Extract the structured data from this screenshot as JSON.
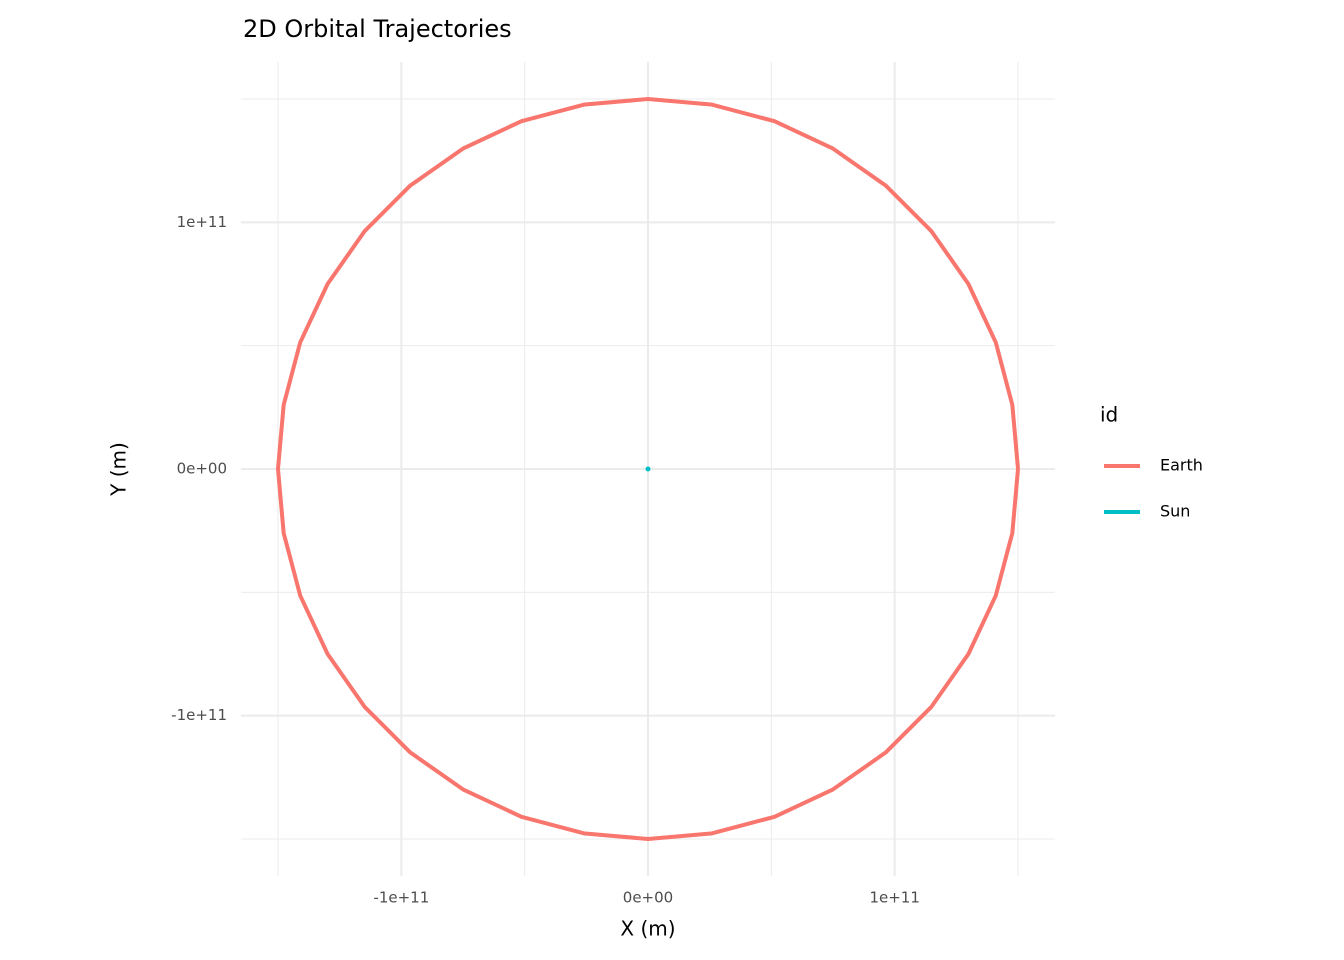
{
  "chart_data": {
    "type": "line",
    "title": "2D Orbital Trajectories",
    "x_label": "X (m)",
    "y_label": "Y (m)",
    "legend_title": "id",
    "legend_position": "right",
    "grid": true,
    "xlim": [
      -165000000000.0,
      165000000000.0
    ],
    "ylim": [
      -165000000000.0,
      165000000000.0
    ],
    "xticks": [
      {
        "value": -100000000000.0,
        "label": "-1e+11"
      },
      {
        "value": 0,
        "label": "0e+00"
      },
      {
        "value": 100000000000.0,
        "label": "1e+11"
      }
    ],
    "yticks": [
      {
        "value": -100000000000.0,
        "label": "-1e+11"
      },
      {
        "value": 0,
        "label": "0e+00"
      },
      {
        "value": 100000000000.0,
        "label": "1e+11"
      }
    ],
    "xminorticks": [
      -150000000000.0,
      -50000000000.0,
      50000000000.0,
      150000000000.0
    ],
    "yminorticks": [
      -150000000000.0,
      -50000000000.0,
      50000000000.0,
      150000000000.0
    ],
    "series": [
      {
        "name": "Earth",
        "color": "#F8766D",
        "x": [
          150000000000.0,
          147700000000.0,
          141000000000.0,
          129900000000.0,
          114900000000.0,
          96400000000.0,
          75000000000.0,
          51300000000.0,
          26000000000.0,
          0,
          -26000000000.0,
          -51300000000.0,
          -75000000000.0,
          -96400000000.0,
          -114900000000.0,
          -129900000000.0,
          -141000000000.0,
          -147700000000.0,
          -150000000000.0,
          -147700000000.0,
          -141000000000.0,
          -129900000000.0,
          -114900000000.0,
          -96400000000.0,
          -75000000000.0,
          -51300000000.0,
          -26000000000.0,
          0,
          26000000000.0,
          51300000000.0,
          75000000000.0,
          96400000000.0,
          114900000000.0,
          129900000000.0,
          141000000000.0,
          147700000000.0,
          150000000000.0
        ],
        "values": [
          0,
          26000000000.0,
          51300000000.0,
          75000000000.0,
          96400000000.0,
          114900000000.0,
          129900000000.0,
          141000000000.0,
          147700000000.0,
          150000000000.0,
          147700000000.0,
          141000000000.0,
          129900000000.0,
          114900000000.0,
          96400000000.0,
          75000000000.0,
          51300000000.0,
          26000000000.0,
          0,
          -26000000000.0,
          -51300000000.0,
          -75000000000.0,
          -96400000000.0,
          -114900000000.0,
          -129900000000.0,
          -141000000000.0,
          -147700000000.0,
          -150000000000.0,
          -147700000000.0,
          -141000000000.0,
          -129900000000.0,
          -114900000000.0,
          -96400000000.0,
          -75000000000.0,
          -51300000000.0,
          -26000000000.0,
          0
        ]
      },
      {
        "name": "Sun",
        "color": "#00BFC4",
        "x": [
          0
        ],
        "values": [
          0
        ]
      }
    ]
  }
}
